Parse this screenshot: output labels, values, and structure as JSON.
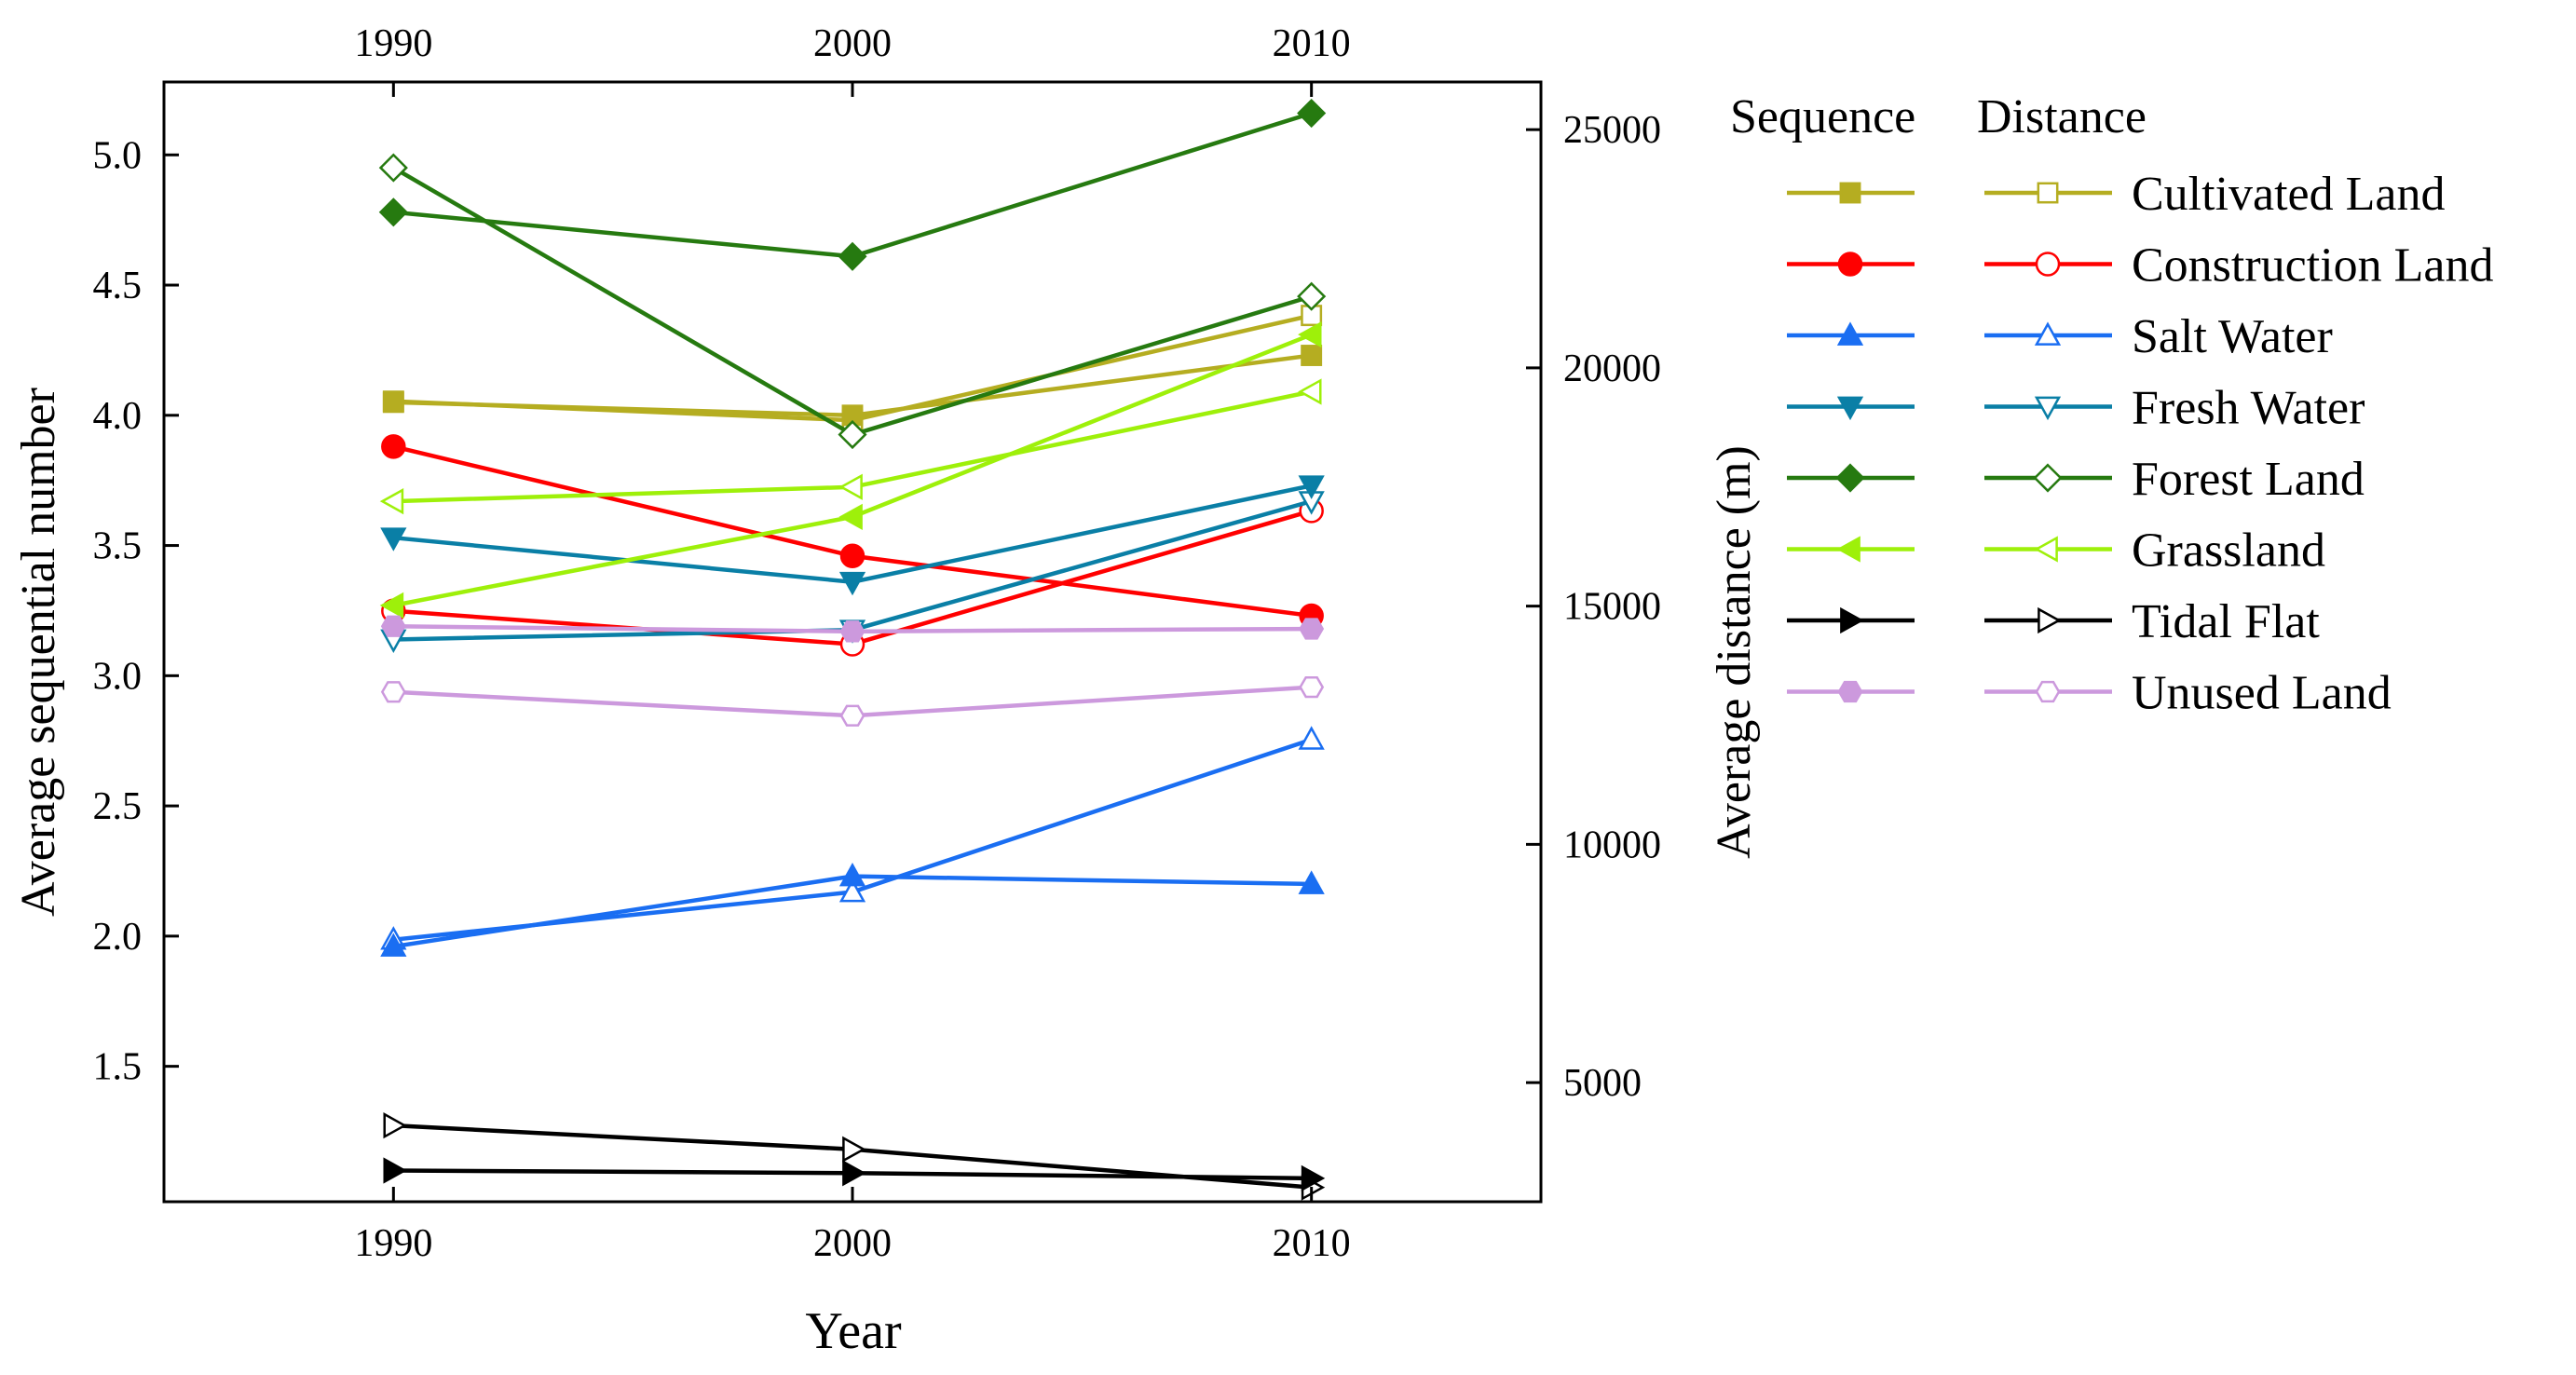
{
  "chart_data": {
    "type": "line",
    "xlabel": "Year",
    "ylabel_left": "Average sequential number",
    "ylabel_right": "Average distance (m)",
    "x": [
      1990,
      2000,
      2010
    ],
    "x_ticks": [
      "1990",
      "2000",
      "2010"
    ],
    "xlim": [
      1985,
      2015
    ],
    "ylim_left": [
      0.98,
      5.28
    ],
    "ylim_right": [
      2500,
      26000
    ],
    "yticks_left": [
      "1.5",
      "2.0",
      "2.5",
      "3.0",
      "3.5",
      "4.0",
      "4.5",
      "5.0"
    ],
    "yticks_right": [
      "5000",
      "10000",
      "15000",
      "20000",
      "25000"
    ],
    "legend": {
      "header_sequence": "Sequence",
      "header_distance": "Distance",
      "position": "right",
      "labels": [
        "Cultivated Land",
        "Construction Land",
        "Salt Water",
        "Fresh Water",
        "Forest Land",
        "Grassland",
        "Tidal Flat",
        "Unused Land"
      ]
    },
    "series": [
      {
        "name": "Cultivated Land",
        "color": "#b5ad21",
        "marker": "square",
        "sequence": [
          4.05,
          4.0,
          4.23
        ],
        "distance": [
          19300,
          18900,
          21100
        ]
      },
      {
        "name": "Construction Land",
        "color": "#ff0000",
        "marker": "circle",
        "sequence": [
          3.88,
          3.46,
          3.23
        ],
        "distance": [
          14900,
          14200,
          17000
        ]
      },
      {
        "name": "Salt Water",
        "color": "#1a6ef2",
        "marker": "triangle-up",
        "sequence": [
          1.96,
          2.23,
          2.2
        ],
        "distance": [
          8000,
          9000,
          12200
        ]
      },
      {
        "name": "Fresh Water",
        "color": "#0a7fa6",
        "marker": "triangle-down",
        "sequence": [
          3.53,
          3.36,
          3.73
        ],
        "distance": [
          14300,
          14500,
          17200
        ]
      },
      {
        "name": "Forest Land",
        "color": "#267a10",
        "marker": "diamond",
        "sequence": [
          4.78,
          4.61,
          5.16
        ],
        "distance": [
          24200,
          18600,
          21500
        ]
      },
      {
        "name": "Grassland",
        "color": "#9ef00a",
        "marker": "triangle-left",
        "sequence": [
          3.27,
          3.61,
          4.31
        ],
        "distance": [
          17200,
          17500,
          19500
        ]
      },
      {
        "name": "Tidal Flat",
        "color": "#000000",
        "marker": "triangle-right",
        "sequence": [
          1.1,
          1.09,
          1.07
        ],
        "distance": [
          4100,
          3600,
          2800
        ]
      },
      {
        "name": "Unused Land",
        "color": "#cc99dd",
        "marker": "hexagon",
        "sequence": [
          3.19,
          3.17,
          3.18
        ],
        "distance": [
          13200,
          12700,
          13300
        ]
      }
    ]
  }
}
